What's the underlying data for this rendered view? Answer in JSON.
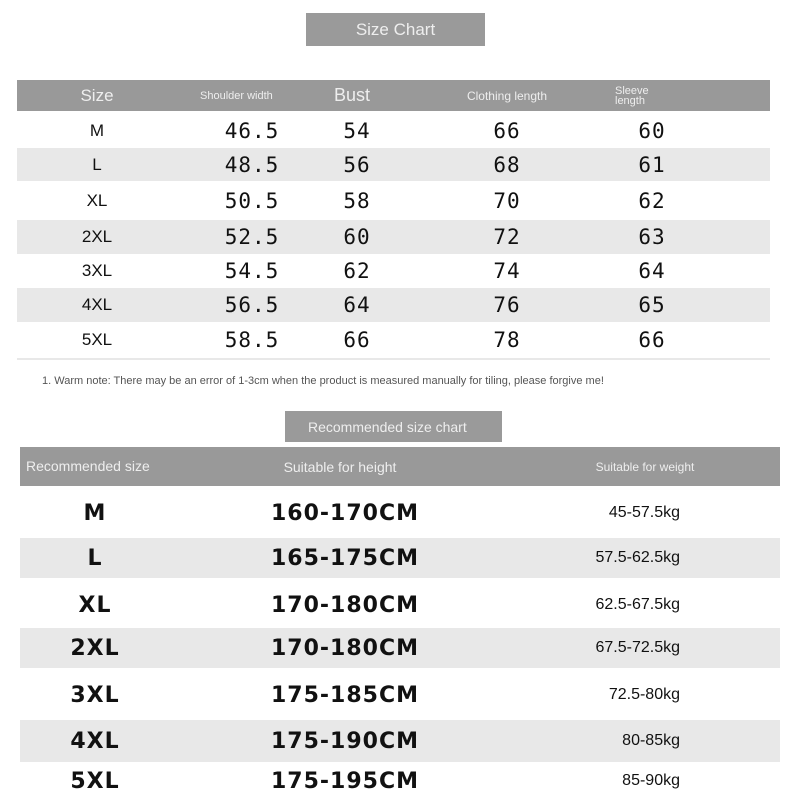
{
  "size_chart": {
    "title": "Size Chart",
    "headers": [
      "Size",
      "Shoulder width",
      "Bust",
      "Clothing length",
      "Sleeve length"
    ],
    "rows": [
      [
        "M",
        "46.5",
        "54",
        "66",
        "60"
      ],
      [
        "L",
        "48.5",
        "56",
        "68",
        "61"
      ],
      [
        "XL",
        "50.5",
        "58",
        "70",
        "62"
      ],
      [
        "2XL",
        "52.5",
        "60",
        "72",
        "63"
      ],
      [
        "3XL",
        "54.5",
        "62",
        "74",
        "64"
      ],
      [
        "4XL",
        "56.5",
        "64",
        "76",
        "65"
      ],
      [
        "5XL",
        "58.5",
        "66",
        "78",
        "66"
      ]
    ]
  },
  "note": "1. Warm note: There may be an error of 1-3cm when the product is measured manually for tiling, please forgive me!",
  "recommended_chart": {
    "title": "Recommended size chart",
    "headers": [
      "Recommended size",
      "Suitable for height",
      "Suitable for weight"
    ],
    "rows": [
      [
        "M",
        "160-170CM",
        "45-57.5kg"
      ],
      [
        "L",
        "165-175CM",
        "57.5-62.5kg"
      ],
      [
        "XL",
        "170-180CM",
        "62.5-67.5kg"
      ],
      [
        "2XL",
        "170-180CM",
        "67.5-72.5kg"
      ],
      [
        "3XL",
        "175-185CM",
        "72.5-80kg"
      ],
      [
        "4XL",
        "175-190CM",
        "80-85kg"
      ],
      [
        "5XL",
        "175-195CM",
        "85-90kg"
      ]
    ]
  },
  "colors": {
    "header": "#999999",
    "stripe": "#e8e8e8"
  }
}
